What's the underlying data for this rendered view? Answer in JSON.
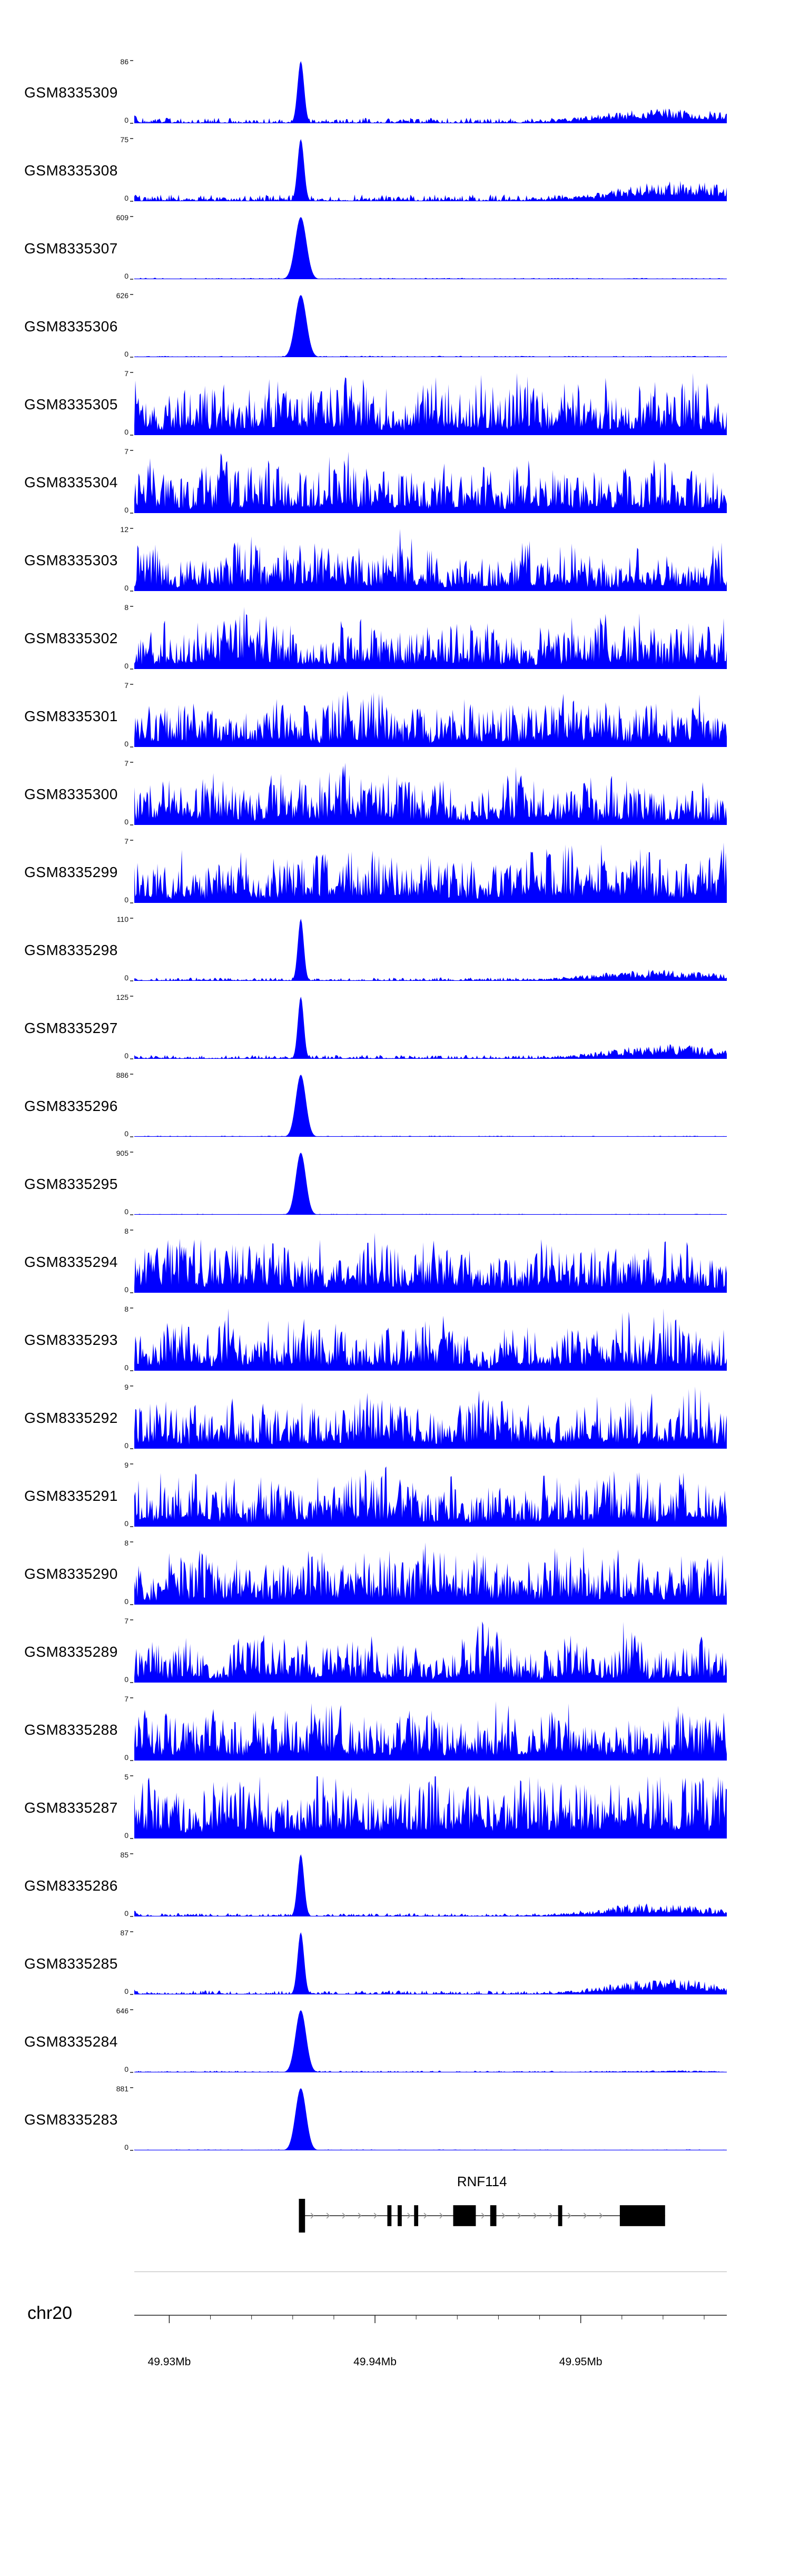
{
  "figure": {
    "chromosome_label": "chr20",
    "gene_label": "RNF114"
  },
  "chart_data": {
    "type": "area",
    "description": "Genome browser coverage tracks (ChIP-seq style signal) over chr20 around the RNF114 locus, one filled area track per GSM sample, with per-track y-axis maxima, a gene model track and a genomic coordinate ruler.",
    "signal_color": "#0000FF",
    "x_axis": {
      "chromosome": "chr20",
      "start_mb": 49.9283,
      "end_mb": 49.9571,
      "major_ticks_mb": [
        49.93,
        49.94,
        49.95
      ],
      "major_tick_labels": [
        "49.93Mb",
        "49.94Mb",
        "49.95Mb"
      ],
      "minor_tick_step_mb": 0.002
    },
    "y_axis": {
      "zero_label": "0",
      "note": "each track scaled 0 to its own ymax"
    },
    "tracks": [
      {
        "name": "GSM8335309",
        "ymax": 86,
        "pattern": "peak",
        "seed": 1,
        "peak_pos": 0.281,
        "peak_sigma": 0.0055,
        "base": 0.05,
        "hump": 0.22,
        "hump_center": 0.9,
        "hump_width": 0.12,
        "edge_spike": 0.14
      },
      {
        "name": "GSM8335308",
        "ymax": 75,
        "pattern": "peak",
        "seed": 2,
        "peak_pos": 0.281,
        "peak_sigma": 0.0055,
        "base": 0.06,
        "hump": 0.3,
        "hump_center": 0.92,
        "hump_width": 0.11,
        "edge_spike": 0.12
      },
      {
        "name": "GSM8335307",
        "ymax": 609,
        "pattern": "peak",
        "seed": 3,
        "peak_pos": 0.281,
        "peak_sigma": 0.0095,
        "base": 0.012,
        "hump": 0,
        "hump_center": 0.9,
        "hump_width": 0.1,
        "edge_spike": 0
      },
      {
        "name": "GSM8335306",
        "ymax": 626,
        "pattern": "peak",
        "seed": 4,
        "peak_pos": 0.281,
        "peak_sigma": 0.0095,
        "base": 0.012,
        "hump": 0,
        "hump_center": 0.9,
        "hump_width": 0.1,
        "edge_spike": 0
      },
      {
        "name": "GSM8335305",
        "ymax": 7,
        "pattern": "noise",
        "seed": 5,
        "level": 0.58
      },
      {
        "name": "GSM8335304",
        "ymax": 7,
        "pattern": "noise",
        "seed": 6,
        "level": 0.55
      },
      {
        "name": "GSM8335303",
        "ymax": 12,
        "pattern": "noise",
        "seed": 7,
        "level": 0.48
      },
      {
        "name": "GSM8335302",
        "ymax": 8,
        "pattern": "noise",
        "seed": 8,
        "level": 0.53
      },
      {
        "name": "GSM8335301",
        "ymax": 7,
        "pattern": "noise",
        "seed": 9,
        "level": 0.52
      },
      {
        "name": "GSM8335300",
        "ymax": 7,
        "pattern": "noise",
        "seed": 10,
        "level": 0.53
      },
      {
        "name": "GSM8335299",
        "ymax": 7,
        "pattern": "noise",
        "seed": 11,
        "level": 0.55
      },
      {
        "name": "GSM8335298",
        "ymax": 110,
        "pattern": "peak",
        "seed": 12,
        "peak_pos": 0.281,
        "peak_sigma": 0.005,
        "base": 0.03,
        "hump": 0.17,
        "hump_center": 0.88,
        "hump_width": 0.11,
        "edge_spike": 0.05
      },
      {
        "name": "GSM8335297",
        "ymax": 125,
        "pattern": "peak",
        "seed": 13,
        "peak_pos": 0.281,
        "peak_sigma": 0.005,
        "base": 0.035,
        "hump": 0.22,
        "hump_center": 0.9,
        "hump_width": 0.1,
        "edge_spike": 0.06
      },
      {
        "name": "GSM8335296",
        "ymax": 886,
        "pattern": "peak",
        "seed": 14,
        "peak_pos": 0.281,
        "peak_sigma": 0.0085,
        "base": 0.01,
        "hump": 0,
        "hump_center": 0.9,
        "hump_width": 0.1,
        "edge_spike": 0
      },
      {
        "name": "GSM8335295",
        "ymax": 905,
        "pattern": "peak",
        "seed": 15,
        "peak_pos": 0.281,
        "peak_sigma": 0.0085,
        "base": 0.008,
        "hump": 0,
        "hump_center": 0.9,
        "hump_width": 0.1,
        "edge_spike": 0
      },
      {
        "name": "GSM8335294",
        "ymax": 8,
        "pattern": "noise",
        "seed": 16,
        "level": 0.56
      },
      {
        "name": "GSM8335293",
        "ymax": 8,
        "pattern": "noise",
        "seed": 17,
        "level": 0.52
      },
      {
        "name": "GSM8335292",
        "ymax": 9,
        "pattern": "noise",
        "seed": 18,
        "level": 0.55
      },
      {
        "name": "GSM8335291",
        "ymax": 9,
        "pattern": "noise",
        "seed": 19,
        "level": 0.55
      },
      {
        "name": "GSM8335290",
        "ymax": 8,
        "pattern": "noise",
        "seed": 20,
        "level": 0.57
      },
      {
        "name": "GSM8335289",
        "ymax": 7,
        "pattern": "noise",
        "seed": 21,
        "level": 0.5
      },
      {
        "name": "GSM8335288",
        "ymax": 7,
        "pattern": "noise",
        "seed": 22,
        "level": 0.55
      },
      {
        "name": "GSM8335287",
        "ymax": 5,
        "pattern": "noise",
        "seed": 23,
        "level": 0.72
      },
      {
        "name": "GSM8335286",
        "ymax": 85,
        "pattern": "peak",
        "seed": 24,
        "peak_pos": 0.281,
        "peak_sigma": 0.0055,
        "base": 0.03,
        "hump": 0.2,
        "hump_center": 0.88,
        "hump_width": 0.1,
        "edge_spike": 0.1
      },
      {
        "name": "GSM8335285",
        "ymax": 87,
        "pattern": "peak",
        "seed": 25,
        "peak_pos": 0.281,
        "peak_sigma": 0.0055,
        "base": 0.035,
        "hump": 0.24,
        "hump_center": 0.9,
        "hump_width": 0.1,
        "edge_spike": 0.08
      },
      {
        "name": "GSM8335284",
        "ymax": 646,
        "pattern": "peak",
        "seed": 26,
        "peak_pos": 0.281,
        "peak_sigma": 0.009,
        "base": 0.015,
        "hump": 0.03,
        "hump_center": 0.9,
        "hump_width": 0.1,
        "edge_spike": 0
      },
      {
        "name": "GSM8335283",
        "ymax": 881,
        "pattern": "peak",
        "seed": 27,
        "peak_pos": 0.281,
        "peak_sigma": 0.009,
        "base": 0.008,
        "hump": 0,
        "hump_center": 0.9,
        "hump_width": 0.1,
        "edge_spike": 0
      }
    ],
    "gene_track": {
      "name": "RNF114",
      "strand": "+",
      "start_mb": 49.9363,
      "end_mb": 49.9541,
      "exons": [
        {
          "start_mb": 49.9363,
          "end_mb": 49.9366,
          "h": 1.0
        },
        {
          "start_mb": 49.9406,
          "end_mb": 49.9408,
          "h": 0.62
        },
        {
          "start_mb": 49.9411,
          "end_mb": 49.9413,
          "h": 0.62
        },
        {
          "start_mb": 49.9419,
          "end_mb": 49.9421,
          "h": 0.62
        },
        {
          "start_mb": 49.9438,
          "end_mb": 49.9449,
          "h": 0.62
        },
        {
          "start_mb": 49.9456,
          "end_mb": 49.9459,
          "h": 0.62
        },
        {
          "start_mb": 49.9489,
          "end_mb": 49.9491,
          "h": 0.62
        },
        {
          "start_mb": 49.9519,
          "end_mb": 49.9541,
          "h": 0.62
        }
      ]
    }
  }
}
